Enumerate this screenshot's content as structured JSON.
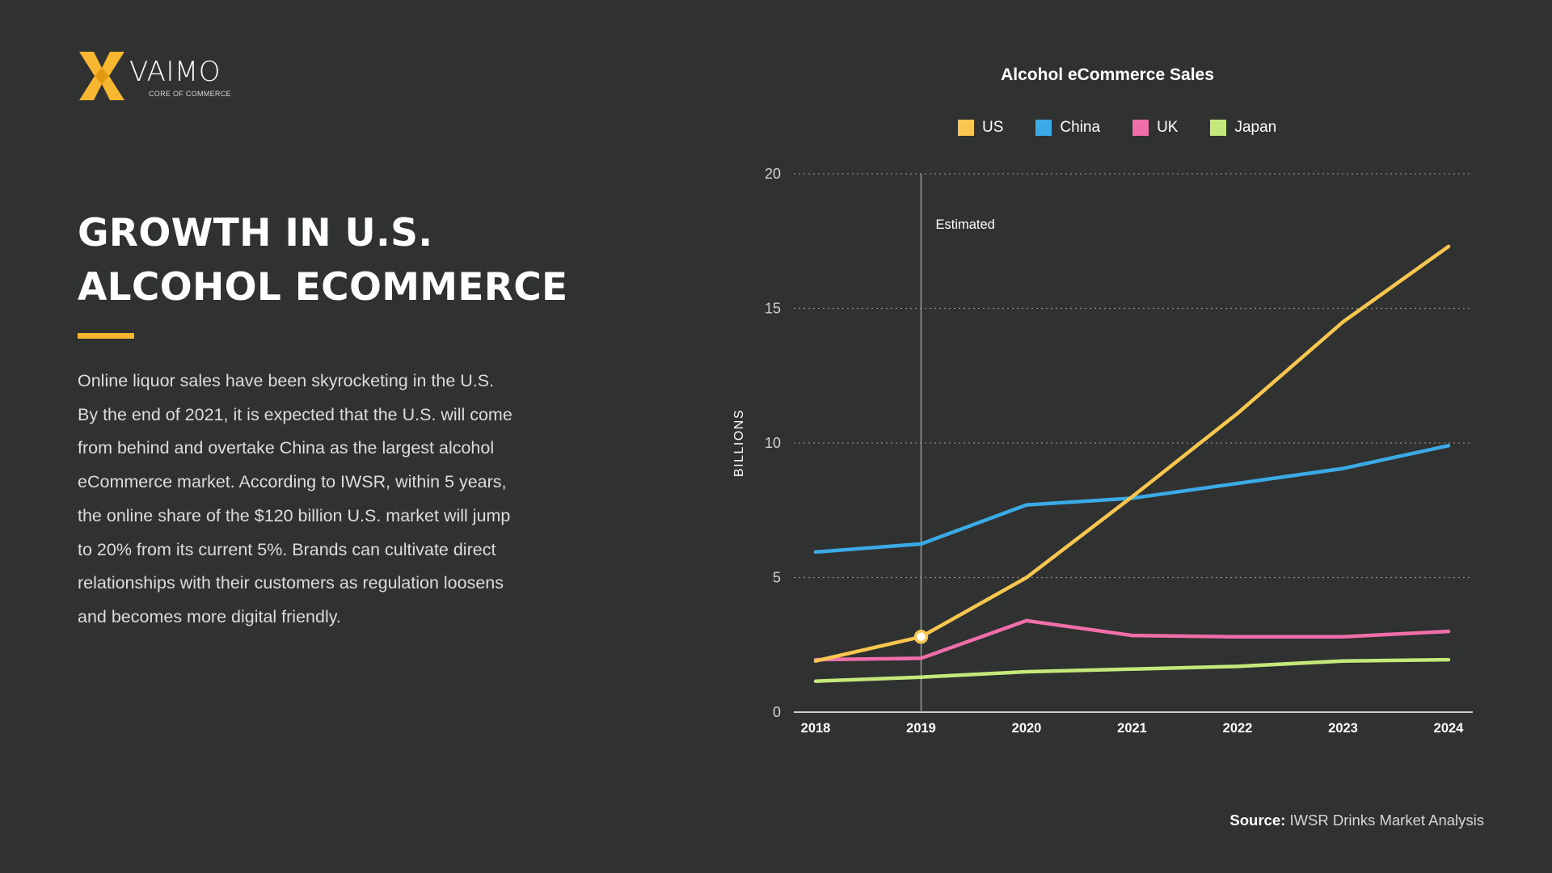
{
  "brand": {
    "name": "VAIMO",
    "tagline": "CORE OF COMMERCE",
    "accent_color": "#f7b731"
  },
  "headline": {
    "line1": "GROWTH IN U.S.",
    "line2": "ALCOHOL ECOMMERCE"
  },
  "body": {
    "lines": [
      "Online liquor sales have been skyrocketing in the U.S.",
      "By the end of 2021, it is expected that the U.S. will come",
      "from behind and overtake China as the largest alcohol",
      "eCommerce market. According to IWSR, within 5 years,",
      "the online share of the $120 billion U.S. market will jump",
      "to 20% from its current 5%.  Brands can cultivate direct",
      "relationships with their customers as regulation loosens",
      "and becomes more digital friendly."
    ]
  },
  "chart_data": {
    "type": "line",
    "title": "Alcohol eCommerce Sales",
    "xlabel": "",
    "ylabel": "BILLIONS",
    "x": [
      "2018",
      "2019",
      "2020",
      "2021",
      "2022",
      "2023",
      "2024"
    ],
    "ylim": [
      0,
      20
    ],
    "yticks": [
      "0",
      "5",
      "10",
      "15",
      "20"
    ],
    "grid": "horizontal dotted",
    "legend_position": "top",
    "series": [
      {
        "name": "US",
        "color": "#f9c74f",
        "values": [
          1.9,
          2.8,
          5.0,
          8.0,
          11.1,
          14.5,
          17.3
        ]
      },
      {
        "name": "China",
        "color": "#3aabe6",
        "values": [
          5.95,
          6.25,
          7.7,
          7.95,
          8.5,
          9.05,
          9.9
        ]
      },
      {
        "name": "UK",
        "color": "#f06ea9",
        "values": [
          1.95,
          2.0,
          3.4,
          2.85,
          2.8,
          2.8,
          3.0
        ]
      },
      {
        "name": "Japan",
        "color": "#c5e87a",
        "values": [
          1.15,
          1.3,
          1.5,
          1.6,
          1.7,
          1.9,
          1.95
        ]
      }
    ],
    "annotations": [
      {
        "text": "Estimated",
        "x": "2019"
      }
    ],
    "highlight": {
      "series": "US",
      "x": "2019"
    }
  },
  "source": {
    "label": "Source:",
    "text": "IWSR Drinks Market Analysis"
  }
}
